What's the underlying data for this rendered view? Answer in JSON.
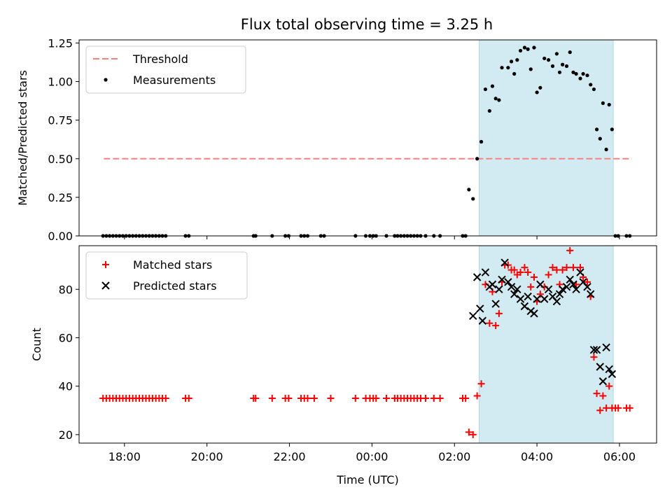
{
  "title": "Flux total observing time = 3.25 h",
  "colors": {
    "threshold": "#ff7f7f",
    "measurements": "#000000",
    "matched": "#ff0000",
    "predicted": "#000000",
    "observing_window": "#add8e6"
  },
  "x_tick_labels": [
    "18:00",
    "20:00",
    "22:00",
    "00:00",
    "02:00",
    "04:00",
    "06:00"
  ],
  "chart_data": [
    {
      "type": "scatter",
      "x_unit": "hours since 00:00 UTC (negative = previous day)",
      "ylabel": "Matched/Predicted stars",
      "ylim": [
        0,
        1.27
      ],
      "yticks": [
        "0.00",
        "0.25",
        "0.50",
        "0.75",
        "1.00",
        "1.25"
      ],
      "ytick_values": [
        0,
        0.25,
        0.5,
        0.75,
        1.0,
        1.25
      ],
      "xlim": [
        -7.1,
        6.9
      ],
      "xticks": [
        -6,
        -4,
        -2,
        0,
        2,
        4,
        6
      ],
      "grid": false,
      "legend_position": "top-left",
      "observing_window": [
        2.6,
        5.85
      ],
      "series": [
        {
          "name": "Threshold",
          "kind": "dashed-line",
          "x": [
            -6.5,
            6.3
          ],
          "y": [
            0.5,
            0.5
          ]
        },
        {
          "name": "Measurements",
          "kind": "dots",
          "points": [
            [
              -6.52,
              0
            ],
            [
              -6.44,
              0
            ],
            [
              -6.36,
              0
            ],
            [
              -6.28,
              0
            ],
            [
              -6.2,
              0
            ],
            [
              -6.12,
              0
            ],
            [
              -6.04,
              0
            ],
            [
              -5.96,
              0
            ],
            [
              -5.88,
              0
            ],
            [
              -5.8,
              0
            ],
            [
              -5.72,
              0
            ],
            [
              -5.64,
              0
            ],
            [
              -5.56,
              0
            ],
            [
              -5.48,
              0
            ],
            [
              -5.4,
              0
            ],
            [
              -5.32,
              0
            ],
            [
              -5.24,
              0
            ],
            [
              -5.16,
              0
            ],
            [
              -5.08,
              0
            ],
            [
              -5.0,
              0
            ],
            [
              -4.52,
              0
            ],
            [
              -4.44,
              0
            ],
            [
              -2.87,
              0
            ],
            [
              -2.82,
              0
            ],
            [
              -2.42,
              0
            ],
            [
              -2.1,
              0
            ],
            [
              -2.02,
              0
            ],
            [
              -1.72,
              0
            ],
            [
              -1.64,
              0
            ],
            [
              -1.56,
              0
            ],
            [
              -1.24,
              0
            ],
            [
              -1.16,
              0
            ],
            [
              -0.4,
              0
            ],
            [
              -0.15,
              0
            ],
            [
              -0.05,
              0
            ],
            [
              0.03,
              0
            ],
            [
              0.1,
              0
            ],
            [
              0.35,
              0
            ],
            [
              0.55,
              0
            ],
            [
              0.62,
              0
            ],
            [
              0.7,
              0
            ],
            [
              0.78,
              0
            ],
            [
              0.86,
              0
            ],
            [
              0.94,
              0
            ],
            [
              1.02,
              0
            ],
            [
              1.1,
              0
            ],
            [
              1.18,
              0
            ],
            [
              1.3,
              0
            ],
            [
              1.5,
              0
            ],
            [
              1.65,
              0
            ],
            [
              2.2,
              0
            ],
            [
              2.27,
              0
            ],
            [
              2.35,
              0.3
            ],
            [
              2.45,
              0.24
            ],
            [
              2.55,
              0.5
            ],
            [
              2.65,
              0.61
            ],
            [
              2.75,
              0.95
            ],
            [
              2.85,
              0.81
            ],
            [
              2.92,
              0.97
            ],
            [
              3.0,
              0.89
            ],
            [
              3.08,
              0.88
            ],
            [
              3.15,
              1.09
            ],
            [
              3.3,
              1.09
            ],
            [
              3.38,
              1.13
            ],
            [
              3.45,
              1.05
            ],
            [
              3.52,
              1.14
            ],
            [
              3.6,
              1.2
            ],
            [
              3.7,
              1.22
            ],
            [
              3.78,
              1.21
            ],
            [
              3.85,
              1.08
            ],
            [
              3.93,
              1.22
            ],
            [
              4.0,
              0.93
            ],
            [
              4.08,
              0.96
            ],
            [
              4.18,
              1.15
            ],
            [
              4.28,
              1.14
            ],
            [
              4.38,
              1.1
            ],
            [
              4.48,
              1.18
            ],
            [
              4.55,
              1.06
            ],
            [
              4.62,
              1.11
            ],
            [
              4.72,
              1.1
            ],
            [
              4.8,
              1.19
            ],
            [
              4.88,
              1.06
            ],
            [
              4.95,
              1.05
            ],
            [
              5.05,
              1.02
            ],
            [
              5.12,
              1.05
            ],
            [
              5.22,
              1.04
            ],
            [
              5.3,
              0.98
            ],
            [
              5.38,
              0.95
            ],
            [
              5.45,
              0.69
            ],
            [
              5.53,
              0.63
            ],
            [
              5.6,
              0.86
            ],
            [
              5.68,
              0.56
            ],
            [
              5.75,
              0.85
            ],
            [
              5.82,
              0.69
            ],
            [
              5.9,
              0
            ],
            [
              5.97,
              0
            ],
            [
              6.17,
              0
            ],
            [
              6.25,
              0
            ]
          ]
        }
      ]
    },
    {
      "type": "scatter",
      "x_unit": "hours since 00:00 UTC (negative = previous day)",
      "xlabel": "Time (UTC)",
      "ylabel": "Count",
      "ylim": [
        16.5,
        98
      ],
      "yticks": [
        "20",
        "40",
        "60",
        "80"
      ],
      "ytick_values": [
        20,
        40,
        60,
        80
      ],
      "xlim": [
        -7.1,
        6.9
      ],
      "xticks": [
        -6,
        -4,
        -2,
        0,
        2,
        4,
        6
      ],
      "grid": false,
      "legend_position": "top-left",
      "observing_window": [
        2.6,
        5.85
      ],
      "series": [
        {
          "name": "Matched stars",
          "kind": "plus",
          "points": [
            [
              -6.52,
              35
            ],
            [
              -6.44,
              35
            ],
            [
              -6.36,
              35
            ],
            [
              -6.28,
              35
            ],
            [
              -6.2,
              35
            ],
            [
              -6.12,
              35
            ],
            [
              -6.04,
              35
            ],
            [
              -5.96,
              35
            ],
            [
              -5.88,
              35
            ],
            [
              -5.8,
              35
            ],
            [
              -5.72,
              35
            ],
            [
              -5.64,
              35
            ],
            [
              -5.56,
              35
            ],
            [
              -5.48,
              35
            ],
            [
              -5.4,
              35
            ],
            [
              -5.32,
              35
            ],
            [
              -5.24,
              35
            ],
            [
              -5.16,
              35
            ],
            [
              -5.08,
              35
            ],
            [
              -5.0,
              35
            ],
            [
              -4.52,
              35
            ],
            [
              -4.44,
              35
            ],
            [
              -2.87,
              35
            ],
            [
              -2.82,
              35
            ],
            [
              -2.42,
              35
            ],
            [
              -2.1,
              35
            ],
            [
              -2.02,
              35
            ],
            [
              -1.72,
              35
            ],
            [
              -1.64,
              35
            ],
            [
              -1.56,
              35
            ],
            [
              -1.4,
              35
            ],
            [
              -1.0,
              35
            ],
            [
              -0.4,
              35
            ],
            [
              -0.15,
              35
            ],
            [
              -0.05,
              35
            ],
            [
              0.03,
              35
            ],
            [
              0.1,
              35
            ],
            [
              0.35,
              35
            ],
            [
              0.55,
              35
            ],
            [
              0.62,
              35
            ],
            [
              0.7,
              35
            ],
            [
              0.78,
              35
            ],
            [
              0.86,
              35
            ],
            [
              0.94,
              35
            ],
            [
              1.02,
              35
            ],
            [
              1.1,
              35
            ],
            [
              1.18,
              35
            ],
            [
              1.3,
              35
            ],
            [
              1.5,
              35
            ],
            [
              1.65,
              35
            ],
            [
              2.2,
              35
            ],
            [
              2.27,
              35
            ],
            [
              2.35,
              21
            ],
            [
              2.45,
              20
            ],
            [
              2.55,
              36
            ],
            [
              2.65,
              41
            ],
            [
              2.75,
              82
            ],
            [
              2.85,
              66
            ],
            [
              2.92,
              79
            ],
            [
              3.0,
              65
            ],
            [
              3.08,
              70
            ],
            [
              3.15,
              83
            ],
            [
              3.22,
              90
            ],
            [
              3.3,
              90
            ],
            [
              3.38,
              88
            ],
            [
              3.45,
              88
            ],
            [
              3.52,
              86
            ],
            [
              3.6,
              87
            ],
            [
              3.7,
              89
            ],
            [
              3.78,
              87
            ],
            [
              3.85,
              81
            ],
            [
              3.93,
              85
            ],
            [
              4.0,
              75
            ],
            [
              4.08,
              78
            ],
            [
              4.18,
              81
            ],
            [
              4.28,
              86
            ],
            [
              4.38,
              89
            ],
            [
              4.48,
              88
            ],
            [
              4.55,
              82
            ],
            [
              4.62,
              88
            ],
            [
              4.72,
              89
            ],
            [
              4.8,
              96
            ],
            [
              4.88,
              89
            ],
            [
              4.95,
              82
            ],
            [
              5.05,
              89
            ],
            [
              5.12,
              85
            ],
            [
              5.22,
              83
            ],
            [
              5.3,
              77
            ],
            [
              5.38,
              52
            ],
            [
              5.45,
              37
            ],
            [
              5.53,
              30
            ],
            [
              5.6,
              36
            ],
            [
              5.68,
              31
            ],
            [
              5.75,
              40
            ],
            [
              5.82,
              31
            ],
            [
              5.9,
              31
            ],
            [
              5.97,
              31
            ],
            [
              6.17,
              31
            ],
            [
              6.25,
              31
            ]
          ]
        },
        {
          "name": "Predicted stars",
          "kind": "x",
          "points": [
            [
              2.45,
              69
            ],
            [
              2.55,
              85
            ],
            [
              2.62,
              72
            ],
            [
              2.68,
              67
            ],
            [
              2.75,
              87
            ],
            [
              2.85,
              81
            ],
            [
              2.92,
              82
            ],
            [
              3.0,
              74
            ],
            [
              3.08,
              80
            ],
            [
              3.15,
              84
            ],
            [
              3.22,
              91
            ],
            [
              3.3,
              83
            ],
            [
              3.38,
              81
            ],
            [
              3.45,
              78
            ],
            [
              3.52,
              80
            ],
            [
              3.6,
              76
            ],
            [
              3.7,
              73
            ],
            [
              3.78,
              77
            ],
            [
              3.85,
              71
            ],
            [
              3.93,
              70
            ],
            [
              4.0,
              76
            ],
            [
              4.08,
              82
            ],
            [
              4.18,
              76
            ],
            [
              4.28,
              80
            ],
            [
              4.38,
              77
            ],
            [
              4.48,
              75
            ],
            [
              4.55,
              78
            ],
            [
              4.62,
              80
            ],
            [
              4.72,
              81
            ],
            [
              4.8,
              84
            ],
            [
              4.88,
              82
            ],
            [
              4.95,
              80
            ],
            [
              5.05,
              87
            ],
            [
              5.12,
              83
            ],
            [
              5.22,
              81
            ],
            [
              5.3,
              78
            ],
            [
              5.38,
              55
            ],
            [
              5.45,
              55
            ],
            [
              5.53,
              48
            ],
            [
              5.6,
              42
            ],
            [
              5.68,
              56
            ],
            [
              5.75,
              47
            ],
            [
              5.82,
              45
            ]
          ]
        }
      ]
    }
  ]
}
